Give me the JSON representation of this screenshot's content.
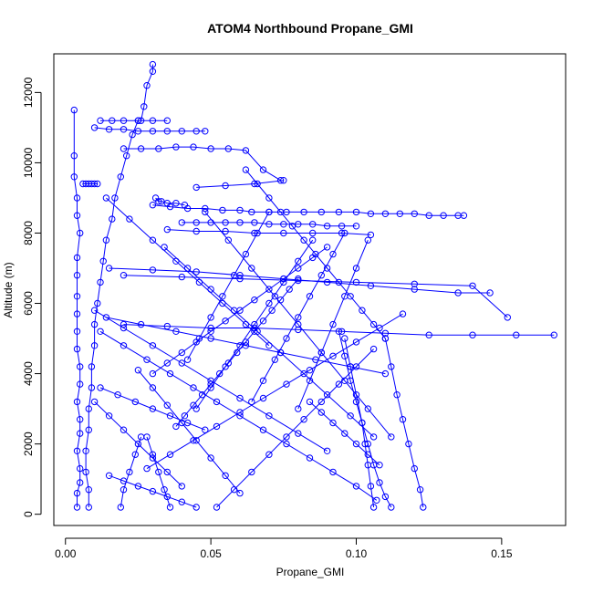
{
  "chart_data": {
    "type": "line",
    "title": "ATOM4 Northbound Propane_GMI",
    "xlabel": "Propane_GMI",
    "ylabel": "Altitude (m)",
    "xlim": [
      -0.004,
      0.172
    ],
    "ylim": [
      -320,
      13100
    ],
    "x_ticks": [
      0.0,
      0.05,
      0.1,
      0.15
    ],
    "x_tick_labels": [
      "0.00",
      "0.05",
      "0.10",
      "0.15"
    ],
    "y_ticks": [
      0,
      2000,
      4000,
      6000,
      8000,
      10000,
      12000
    ],
    "y_tick_labels": [
      "0",
      "2000",
      "4000",
      "6000",
      "8000",
      "10000",
      "12000"
    ],
    "grid": false,
    "series_color": "#0000ff",
    "marker": "open-circle",
    "series": [
      {
        "x": [
          0.004,
          0.004,
          0.005,
          0.005,
          0.004,
          0.005,
          0.005,
          0.004,
          0.005,
          0.005,
          0.004,
          0.004,
          0.004,
          0.004,
          0.004,
          0.004,
          0.005,
          0.004,
          0.004,
          0.003,
          0.003,
          0.003
        ],
        "y": [
          200,
          600,
          900,
          1300,
          1800,
          2300,
          2700,
          3200,
          3700,
          4200,
          4700,
          5200,
          5700,
          6200,
          6800,
          7300,
          8000,
          8500,
          9000,
          9600,
          10200,
          11500
        ]
      },
      {
        "x": [
          0.008,
          0.008,
          0.007,
          0.007,
          0.008,
          0.008,
          0.009,
          0.009,
          0.01,
          0.01,
          0.011,
          0.012,
          0.013,
          0.014,
          0.016,
          0.017,
          0.019,
          0.021,
          0.023,
          0.025
        ],
        "y": [
          200,
          700,
          1200,
          1800,
          2400,
          3000,
          3600,
          4200,
          4800,
          5400,
          6000,
          6600,
          7200,
          7800,
          8400,
          9000,
          9600,
          10200,
          10800,
          11200
        ]
      },
      {
        "x": [
          0.026,
          0.027,
          0.028,
          0.03,
          0.03
        ],
        "y": [
          11200,
          11600,
          12200,
          12600,
          12800
        ]
      },
      {
        "x": [
          0.01,
          0.015,
          0.02,
          0.025,
          0.03,
          0.035,
          0.04,
          0.045,
          0.048
        ],
        "y": [
          11000,
          10950,
          10950,
          10900,
          10900,
          10900,
          10900,
          10900,
          10900
        ]
      },
      {
        "x": [
          0.012,
          0.016,
          0.02,
          0.025,
          0.03,
          0.035
        ],
        "y": [
          11200,
          11200,
          11200,
          11200,
          11200,
          11200
        ]
      },
      {
        "x": [
          0.03,
          0.036,
          0.042,
          0.048,
          0.054,
          0.06,
          0.064,
          0.07,
          0.076,
          0.082,
          0.088,
          0.094,
          0.1,
          0.105,
          0.11,
          0.115,
          0.12,
          0.125,
          0.13,
          0.135,
          0.137
        ],
        "y": [
          8800,
          8750,
          8700,
          8700,
          8650,
          8650,
          8600,
          8600,
          8600,
          8600,
          8600,
          8600,
          8600,
          8550,
          8550,
          8550,
          8550,
          8500,
          8500,
          8500,
          8500
        ]
      },
      {
        "x": [
          0.04,
          0.045,
          0.05,
          0.055,
          0.06,
          0.065,
          0.07,
          0.075,
          0.08,
          0.085,
          0.09,
          0.095,
          0.1
        ],
        "y": [
          8300,
          8300,
          8300,
          8300,
          8300,
          8300,
          8250,
          8250,
          8250,
          8250,
          8200,
          8200,
          8200
        ]
      },
      {
        "x": [
          0.035,
          0.045,
          0.055,
          0.065,
          0.075,
          0.085,
          0.095,
          0.105
        ],
        "y": [
          8100,
          8050,
          8050,
          8000,
          8000,
          8000,
          8000,
          7950
        ]
      },
      {
        "x": [
          0.045,
          0.055,
          0.065,
          0.075
        ],
        "y": [
          9300,
          9350,
          9400,
          9500
        ]
      },
      {
        "x": [
          0.02,
          0.035,
          0.05,
          0.065,
          0.08,
          0.095,
          0.11,
          0.125,
          0.14,
          0.155,
          0.168
        ],
        "y": [
          5400,
          5350,
          5300,
          5300,
          5250,
          5200,
          5150,
          5100,
          5100,
          5100,
          5100
        ]
      },
      {
        "x": [
          0.02,
          0.04,
          0.06,
          0.08,
          0.1,
          0.12,
          0.14,
          0.152
        ],
        "y": [
          6800,
          6750,
          6700,
          6650,
          6600,
          6550,
          6500,
          5600
        ]
      },
      {
        "x": [
          0.015,
          0.03,
          0.045,
          0.06,
          0.075,
          0.09,
          0.105,
          0.12,
          0.135,
          0.146
        ],
        "y": [
          7000,
          6950,
          6900,
          6800,
          6700,
          6600,
          6500,
          6400,
          6300,
          6300
        ]
      },
      {
        "x": [
          0.112,
          0.11,
          0.108,
          0.106,
          0.104,
          0.102,
          0.1,
          0.098,
          0.096,
          0.094
        ],
        "y": [
          200,
          500,
          900,
          1400,
          2000,
          2600,
          3200,
          3800,
          4500,
          5200
        ]
      },
      {
        "x": [
          0.123,
          0.122,
          0.12,
          0.118,
          0.116,
          0.114,
          0.112,
          0.11
        ],
        "y": [
          200,
          700,
          1300,
          2000,
          2700,
          3400,
          4200,
          5000
        ]
      },
      {
        "x": [
          0.106,
          0.105,
          0.104,
          0.103,
          0.102,
          0.1,
          0.098,
          0.096
        ],
        "y": [
          200,
          800,
          1400,
          2000,
          2600,
          3400,
          4200,
          5000
        ]
      },
      {
        "x": [
          0.107,
          0.1,
          0.092,
          0.084,
          0.076,
          0.068,
          0.06,
          0.052,
          0.044,
          0.036,
          0.028,
          0.02,
          0.012
        ],
        "y": [
          400,
          800,
          1200,
          1600,
          2000,
          2400,
          2800,
          3200,
          3600,
          4000,
          4400,
          4800,
          5200
        ]
      },
      {
        "x": [
          0.052,
          0.058,
          0.064,
          0.07,
          0.076,
          0.082,
          0.088,
          0.094,
          0.1,
          0.106
        ],
        "y": [
          200,
          700,
          1200,
          1700,
          2200,
          2700,
          3200,
          3700,
          4200,
          4700
        ]
      },
      {
        "x": [
          0.01,
          0.015,
          0.02,
          0.025,
          0.03,
          0.035,
          0.04
        ],
        "y": [
          3200,
          2800,
          2400,
          2000,
          1600,
          1200,
          800
        ]
      },
      {
        "x": [
          0.036,
          0.034,
          0.032,
          0.03,
          0.028
        ],
        "y": [
          200,
          700,
          1200,
          1700,
          2200
        ]
      },
      {
        "x": [
          0.019,
          0.02,
          0.022,
          0.024,
          0.026
        ],
        "y": [
          200,
          700,
          1200,
          1700,
          2200
        ]
      },
      {
        "x": [
          0.038,
          0.041,
          0.044,
          0.047,
          0.05,
          0.053,
          0.056,
          0.059,
          0.062,
          0.065,
          0.068,
          0.071,
          0.074,
          0.077,
          0.08
        ],
        "y": [
          2500,
          2800,
          3100,
          3400,
          3700,
          4000,
          4300,
          4600,
          4900,
          5200,
          5500,
          5800,
          6100,
          6400,
          6700
        ]
      },
      {
        "x": [
          0.03,
          0.035,
          0.04,
          0.045,
          0.05,
          0.055,
          0.06,
          0.065,
          0.07,
          0.075,
          0.08,
          0.085,
          0.09
        ],
        "y": [
          4000,
          4300,
          4600,
          4900,
          5200,
          5500,
          5800,
          6100,
          6400,
          6700,
          7000,
          7300,
          7600
        ]
      },
      {
        "x": [
          0.028,
          0.036,
          0.044,
          0.052,
          0.06,
          0.068,
          0.076,
          0.084,
          0.092,
          0.1,
          0.108,
          0.116
        ],
        "y": [
          1300,
          1700,
          2100,
          2500,
          2900,
          3300,
          3700,
          4100,
          4500,
          4900,
          5300,
          5700
        ]
      },
      {
        "x": [
          0.11,
          0.098,
          0.086,
          0.074,
          0.062,
          0.05,
          0.038,
          0.026,
          0.014
        ],
        "y": [
          4000,
          4200,
          4400,
          4600,
          4800,
          5000,
          5200,
          5400,
          5600
        ]
      },
      {
        "x": [
          0.09,
          0.08,
          0.07,
          0.06,
          0.05,
          0.04,
          0.03,
          0.02,
          0.01
        ],
        "y": [
          1800,
          2300,
          2800,
          3300,
          3800,
          4300,
          4800,
          5300,
          5800
        ]
      },
      {
        "x": [
          0.06,
          0.055,
          0.05,
          0.045,
          0.04,
          0.035,
          0.03,
          0.025
        ],
        "y": [
          600,
          1100,
          1600,
          2100,
          2600,
          3100,
          3600,
          4100
        ]
      },
      {
        "x": [
          0.085,
          0.08,
          0.075,
          0.07,
          0.065,
          0.06,
          0.055,
          0.05,
          0.045
        ],
        "y": [
          7800,
          7200,
          6600,
          6000,
          5400,
          4800,
          4200,
          3600,
          3000
        ]
      },
      {
        "x": [
          0.07,
          0.066,
          0.062,
          0.058,
          0.054,
          0.05,
          0.046,
          0.042
        ],
        "y": [
          8600,
          8000,
          7400,
          6800,
          6200,
          5600,
          5000,
          4400
        ]
      },
      {
        "x": [
          0.096,
          0.092,
          0.088,
          0.084,
          0.08,
          0.076,
          0.072,
          0.068,
          0.064
        ],
        "y": [
          8000,
          7400,
          6800,
          6200,
          5600,
          5000,
          4400,
          3800,
          3200
        ]
      },
      {
        "x": [
          0.104,
          0.1,
          0.096,
          0.092,
          0.088,
          0.084,
          0.08
        ],
        "y": [
          7800,
          7000,
          6200,
          5400,
          4600,
          3800,
          3000
        ]
      },
      {
        "x": [
          0.02,
          0.026,
          0.032,
          0.038,
          0.044,
          0.05,
          0.056,
          0.062,
          0.068,
          0.074
        ],
        "y": [
          10400,
          10400,
          10400,
          10450,
          10450,
          10400,
          10400,
          10350,
          9800,
          9500
        ]
      },
      {
        "x": [
          0.062,
          0.066,
          0.07,
          0.074,
          0.078,
          0.082,
          0.086,
          0.09,
          0.094,
          0.098,
          0.102,
          0.106,
          0.11
        ],
        "y": [
          9800,
          9400,
          9000,
          8600,
          8200,
          7800,
          7400,
          7000,
          6600,
          6200,
          5800,
          5400,
          5000
        ]
      },
      {
        "x": [
          0.048,
          0.056,
          0.064,
          0.072,
          0.08,
          0.088,
          0.096,
          0.104,
          0.112
        ],
        "y": [
          8600,
          7800,
          7000,
          6200,
          5400,
          4600,
          3800,
          3000,
          2200
        ]
      },
      {
        "x": [
          0.034,
          0.042,
          0.05,
          0.058,
          0.066,
          0.074,
          0.082,
          0.09,
          0.098,
          0.106
        ],
        "y": [
          7600,
          7000,
          6400,
          5800,
          5200,
          4600,
          4000,
          3400,
          2800,
          2200
        ]
      },
      {
        "x": [
          0.014,
          0.022,
          0.03,
          0.038,
          0.046,
          0.054,
          0.062,
          0.07
        ],
        "y": [
          9000,
          8400,
          7800,
          7200,
          6600,
          6000,
          5400,
          4800
        ]
      },
      {
        "x": [
          0.031,
          0.032,
          0.033,
          0.035,
          0.038,
          0.041
        ],
        "y": [
          9000,
          8900,
          8900,
          8850,
          8850,
          8800
        ]
      },
      {
        "x": [
          0.006,
          0.007,
          0.008,
          0.009,
          0.01,
          0.011
        ],
        "y": [
          9400,
          9400,
          9400,
          9400,
          9400,
          9400
        ]
      },
      {
        "x": [
          0.012,
          0.018,
          0.024,
          0.03,
          0.036,
          0.042,
          0.048
        ],
        "y": [
          3600,
          3400,
          3200,
          3000,
          2800,
          2600,
          2400
        ]
      },
      {
        "x": [
          0.015,
          0.02,
          0.025,
          0.03,
          0.035,
          0.04,
          0.045
        ],
        "y": [
          1100,
          950,
          800,
          650,
          500,
          350,
          200
        ]
      },
      {
        "x": [
          0.108,
          0.104,
          0.1,
          0.096,
          0.092,
          0.088,
          0.084
        ],
        "y": [
          1400,
          1700,
          2000,
          2300,
          2600,
          2900,
          3200
        ]
      }
    ]
  }
}
